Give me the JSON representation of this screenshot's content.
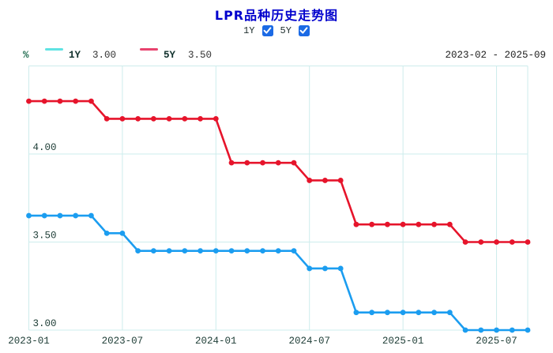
{
  "header": {
    "title": "LPR品种历史走势图",
    "toggles": [
      {
        "label": "1Y",
        "checked": true
      },
      {
        "label": "5Y",
        "checked": true
      }
    ],
    "title_color": "#0101CD",
    "checkbox_color": "#1B6AE5"
  },
  "legend": {
    "unit": "%",
    "items": [
      {
        "name": "1Y",
        "value": "3.00",
        "swatch_color": "#5FE3E3"
      },
      {
        "name": "5Y",
        "value": "3.50",
        "swatch_color": "#E8436E"
      }
    ],
    "range": "2023-02 - 2025-09"
  },
  "chart_data": {
    "type": "line",
    "title": "LPR品种历史走势图",
    "ylabel": "%",
    "x": [
      "2023-01",
      "2023-02",
      "2023-03",
      "2023-04",
      "2023-05",
      "2023-06",
      "2023-07",
      "2023-08",
      "2023-09",
      "2023-10",
      "2023-11",
      "2023-12",
      "2024-01",
      "2024-02",
      "2024-03",
      "2024-04",
      "2024-05",
      "2024-06",
      "2024-07",
      "2024-08",
      "2024-09",
      "2024-10",
      "2024-11",
      "2024-12",
      "2025-01",
      "2025-02",
      "2025-03",
      "2025-04",
      "2025-05",
      "2025-06",
      "2025-07",
      "2025-08",
      "2025-09"
    ],
    "series": [
      {
        "name": "1Y",
        "color": "#1B9DF0",
        "values": [
          3.65,
          3.65,
          3.65,
          3.65,
          3.65,
          3.55,
          3.55,
          3.45,
          3.45,
          3.45,
          3.45,
          3.45,
          3.45,
          3.45,
          3.45,
          3.45,
          3.45,
          3.45,
          3.35,
          3.35,
          3.35,
          3.1,
          3.1,
          3.1,
          3.1,
          3.1,
          3.1,
          3.1,
          3.0,
          3.0,
          3.0,
          3.0,
          3.0
        ]
      },
      {
        "name": "5Y",
        "color": "#E6142B",
        "values": [
          4.3,
          4.3,
          4.3,
          4.3,
          4.3,
          4.2,
          4.2,
          4.2,
          4.2,
          4.2,
          4.2,
          4.2,
          4.2,
          3.95,
          3.95,
          3.95,
          3.95,
          3.95,
          3.85,
          3.85,
          3.85,
          3.6,
          3.6,
          3.6,
          3.6,
          3.6,
          3.6,
          3.6,
          3.5,
          3.5,
          3.5,
          3.5,
          3.5
        ]
      }
    ],
    "ylim": [
      3.0,
      4.5
    ],
    "ytick_labels": [
      "3.00",
      "3.50",
      "4.00"
    ],
    "xtick_labels": [
      "2023-01",
      "2023-07",
      "2024-01",
      "2024-07",
      "2025-01",
      "2025-07"
    ],
    "grid": true,
    "grid_color": "#cdecec",
    "axis_text_color": "#1e3d36",
    "legend_position": "top"
  }
}
